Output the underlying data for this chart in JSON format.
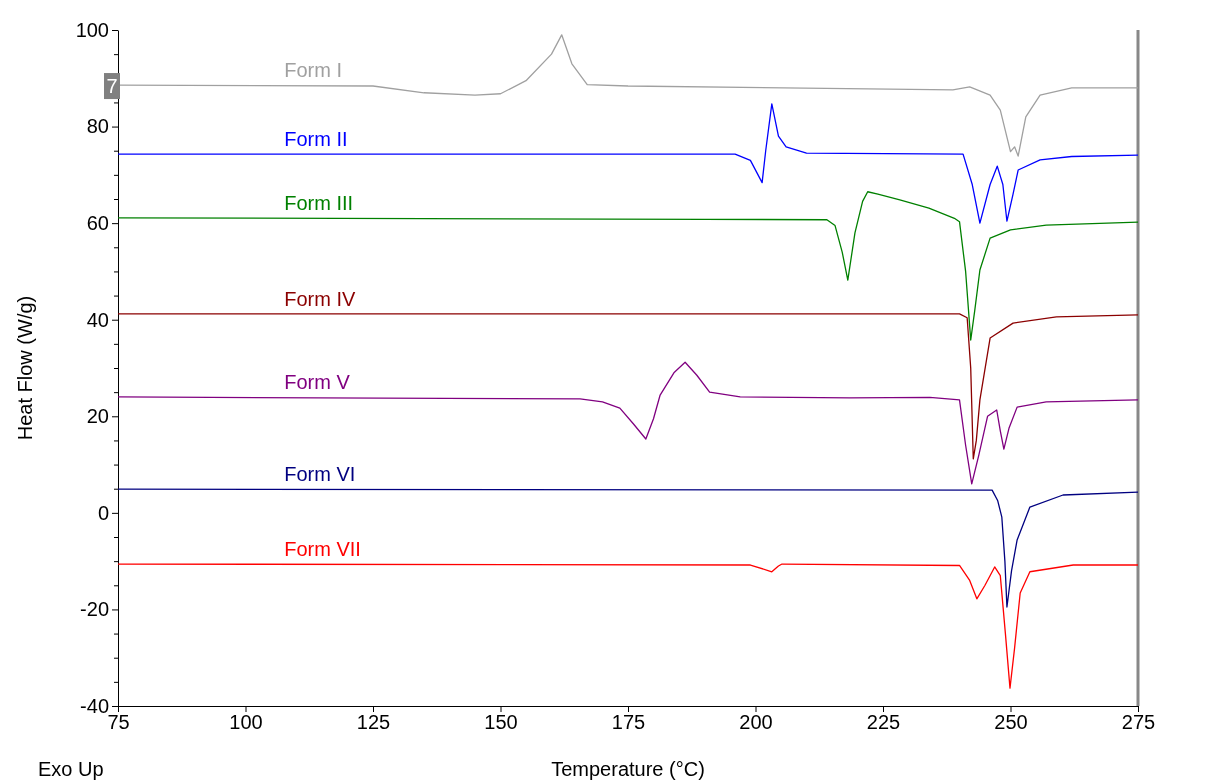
{
  "chart_data": {
    "type": "line",
    "xlabel": "Temperature (°C)",
    "ylabel": "Heat Flow (W/g)",
    "xlim": [
      75,
      275
    ],
    "xticks": [
      75,
      100,
      125,
      150,
      175,
      200,
      225,
      250,
      275
    ],
    "ylim": [
      -40,
      100
    ],
    "yticks": [
      -40,
      {
        "value": -35,
        "label": null
      },
      -20,
      {
        "value": -30,
        "label": null
      },
      {
        "value": -25,
        "label": null
      },
      {
        "value": -15,
        "label": null
      },
      {
        "value": -10,
        "label": null
      },
      {
        "value": -5,
        "label": null
      },
      0,
      {
        "value": 5,
        "label": null
      },
      {
        "value": 10,
        "label": null
      },
      {
        "value": 15,
        "label": null
      },
      20,
      {
        "value": 25,
        "label": null
      },
      {
        "value": 30,
        "label": null
      },
      {
        "value": 35,
        "label": null
      },
      40,
      {
        "value": 45,
        "label": null
      },
      {
        "value": 50,
        "label": null
      },
      {
        "value": 55,
        "label": null
      },
      60,
      {
        "value": 65,
        "label": null
      },
      {
        "value": 70,
        "label": null
      },
      {
        "value": 75,
        "label": null
      },
      80,
      {
        "value": 85,
        "label": null
      },
      {
        "value": 90,
        "label": null
      },
      {
        "value": 95,
        "label": null
      },
      100
    ],
    "grid": false,
    "legend": false,
    "marker": "none",
    "line_style": "solid",
    "annotations": [
      "Exo Up",
      "7"
    ],
    "series": [
      {
        "name": "Form I",
        "color": "#a0a0a0",
        "x": [
          75,
          125,
          135,
          145,
          150,
          155,
          160,
          162,
          164,
          167,
          175,
          238.7,
          242,
          246,
          248,
          250,
          250.8,
          251.5,
          253,
          255.8,
          262,
          275
        ],
        "values": [
          88.6,
          88.4,
          87,
          86.5,
          86.8,
          89.5,
          95,
          99,
          93,
          88.7,
          88.4,
          87.6,
          88.2,
          86.5,
          83.4,
          74.8,
          75.8,
          73.9,
          82,
          86.5,
          88,
          88
        ]
      },
      {
        "name": "Form II",
        "color": "#0000ff",
        "x": [
          75,
          196,
          199,
          201.3,
          202,
          203.2,
          204.5,
          206,
          210,
          240.7,
          242.5,
          244,
          246,
          247.4,
          248.5,
          249.3,
          250.5,
          251.5,
          255.8,
          262,
          275
        ],
        "values": [
          74.3,
          74.3,
          73,
          68.4,
          75,
          84.7,
          78,
          75.8,
          74.5,
          74.3,
          68,
          60,
          68,
          71.8,
          68,
          60.4,
          66,
          71,
          73.1,
          73.8,
          74.1
        ]
      },
      {
        "name": "Form III",
        "color": "#008000",
        "x": [
          75,
          190,
          214,
          215.6,
          217,
          218.1,
          219.5,
          221,
          222,
          224,
          228.3,
          234,
          239,
          240,
          241.2,
          242.2,
          243,
          244,
          246,
          250,
          257,
          275
        ],
        "values": [
          61.1,
          60.8,
          60.7,
          59.5,
          54,
          48.2,
          58,
          64.5,
          66.5,
          66,
          64.8,
          63.1,
          61,
          60.3,
          50,
          35.8,
          42,
          50.3,
          56.9,
          58.6,
          59.6,
          60.2
        ]
      },
      {
        "name": "Form IV",
        "color": "#8b0000",
        "x": [
          75,
          240,
          241.5,
          242.2,
          242.7,
          243.3,
          244,
          246,
          250.5,
          259,
          275
        ],
        "values": [
          41.2,
          41.2,
          40.4,
          30,
          11.2,
          15,
          23.4,
          36.2,
          39.3,
          40.6,
          41
        ]
      },
      {
        "name": "Form V",
        "color": "#800080",
        "x": [
          75,
          165.6,
          170,
          173.4,
          176,
          178.5,
          180,
          181.3,
          184,
          186.2,
          188.5,
          191,
          197,
          218.5,
          234.2,
          240,
          241.2,
          242.4,
          243.8,
          245.5,
          247.3,
          248,
          248.7,
          249.7,
          251.3,
          257,
          275
        ],
        "values": [
          24,
          23.6,
          23,
          21.7,
          18.5,
          15.3,
          19.5,
          24.4,
          29,
          31.2,
          28.5,
          25,
          24,
          23.8,
          23.9,
          23.4,
          14,
          6,
          12,
          20,
          21.3,
          17,
          13.2,
          17.5,
          21.9,
          23,
          23.4
        ]
      },
      {
        "name": "Form VI",
        "color": "#000080",
        "x": [
          75,
          246.4,
          247.5,
          248.3,
          248.9,
          249.3,
          250.2,
          251.3,
          253.8,
          260.3,
          275
        ],
        "values": [
          4.9,
          4.7,
          2.5,
          -0.9,
          -10,
          -19.5,
          -12,
          -5.6,
          1.2,
          3.7,
          4.3
        ]
      },
      {
        "name": "Form VII",
        "color": "#ff0000",
        "x": [
          75,
          199,
          203.2,
          204.5,
          205.2,
          240,
          242,
          243.4,
          245,
          246.9,
          248,
          249,
          249.9,
          250.8,
          251.9,
          253.8,
          262.3,
          275
        ],
        "values": [
          -10.6,
          -10.8,
          -12.2,
          -11,
          -10.6,
          -10.9,
          -14,
          -17.8,
          -15,
          -11.2,
          -13,
          -25,
          -36.3,
          -28,
          -16.6,
          -12.2,
          -10.8,
          -10.8
        ]
      }
    ]
  }
}
